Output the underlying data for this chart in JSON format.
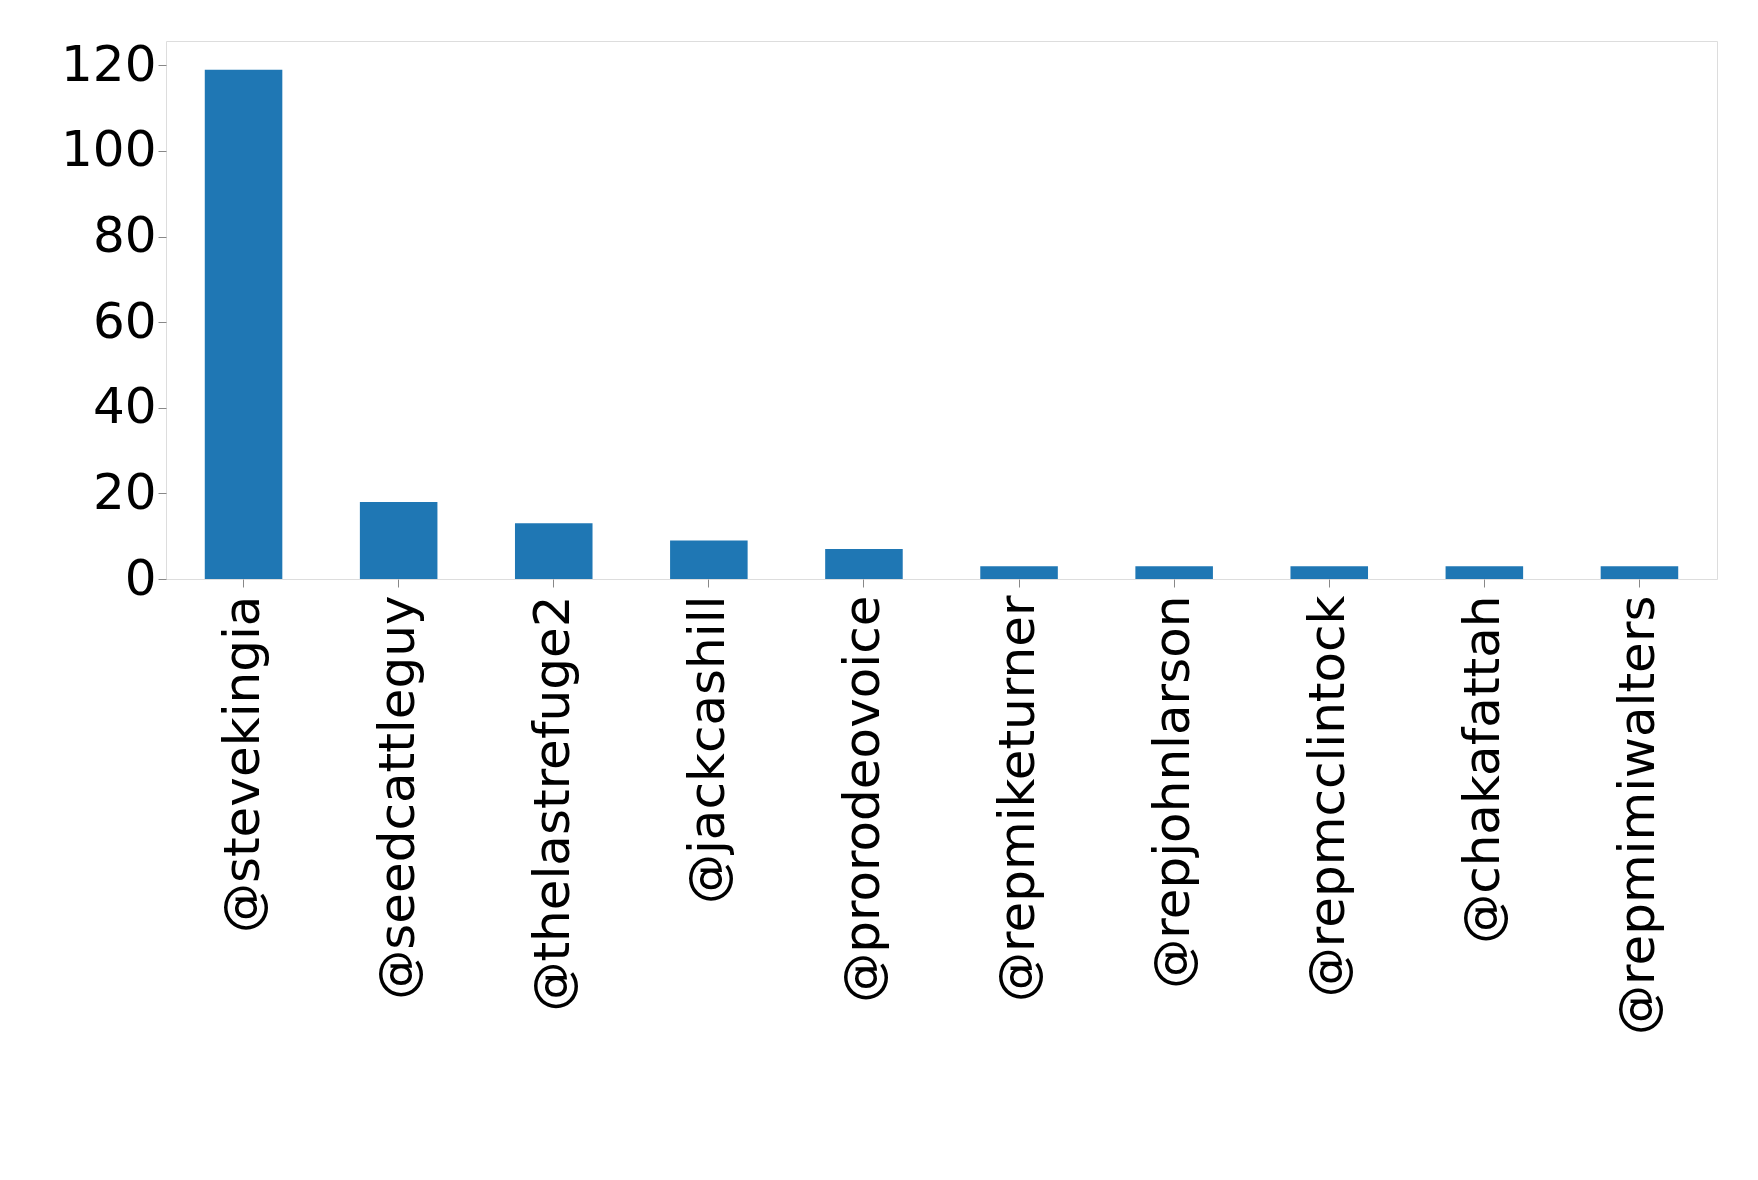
{
  "chart_data": {
    "type": "bar",
    "categories": [
      "@stevekingia",
      "@seedcattleguy",
      "@thelastrefuge2",
      "@jackcashill",
      "@prorodeovoice",
      "@repmiketurner",
      "@repjohnlarson",
      "@repmcclintock",
      "@chakafattah",
      "@repmimiwalters"
    ],
    "values": [
      119,
      18,
      13,
      9,
      7,
      3,
      3,
      3,
      3,
      3
    ],
    "color": "#1f77b4",
    "ylim": [
      0,
      125.7
    ],
    "yticks": [
      0,
      20,
      40,
      60,
      80,
      100,
      120
    ],
    "grid": false
  }
}
